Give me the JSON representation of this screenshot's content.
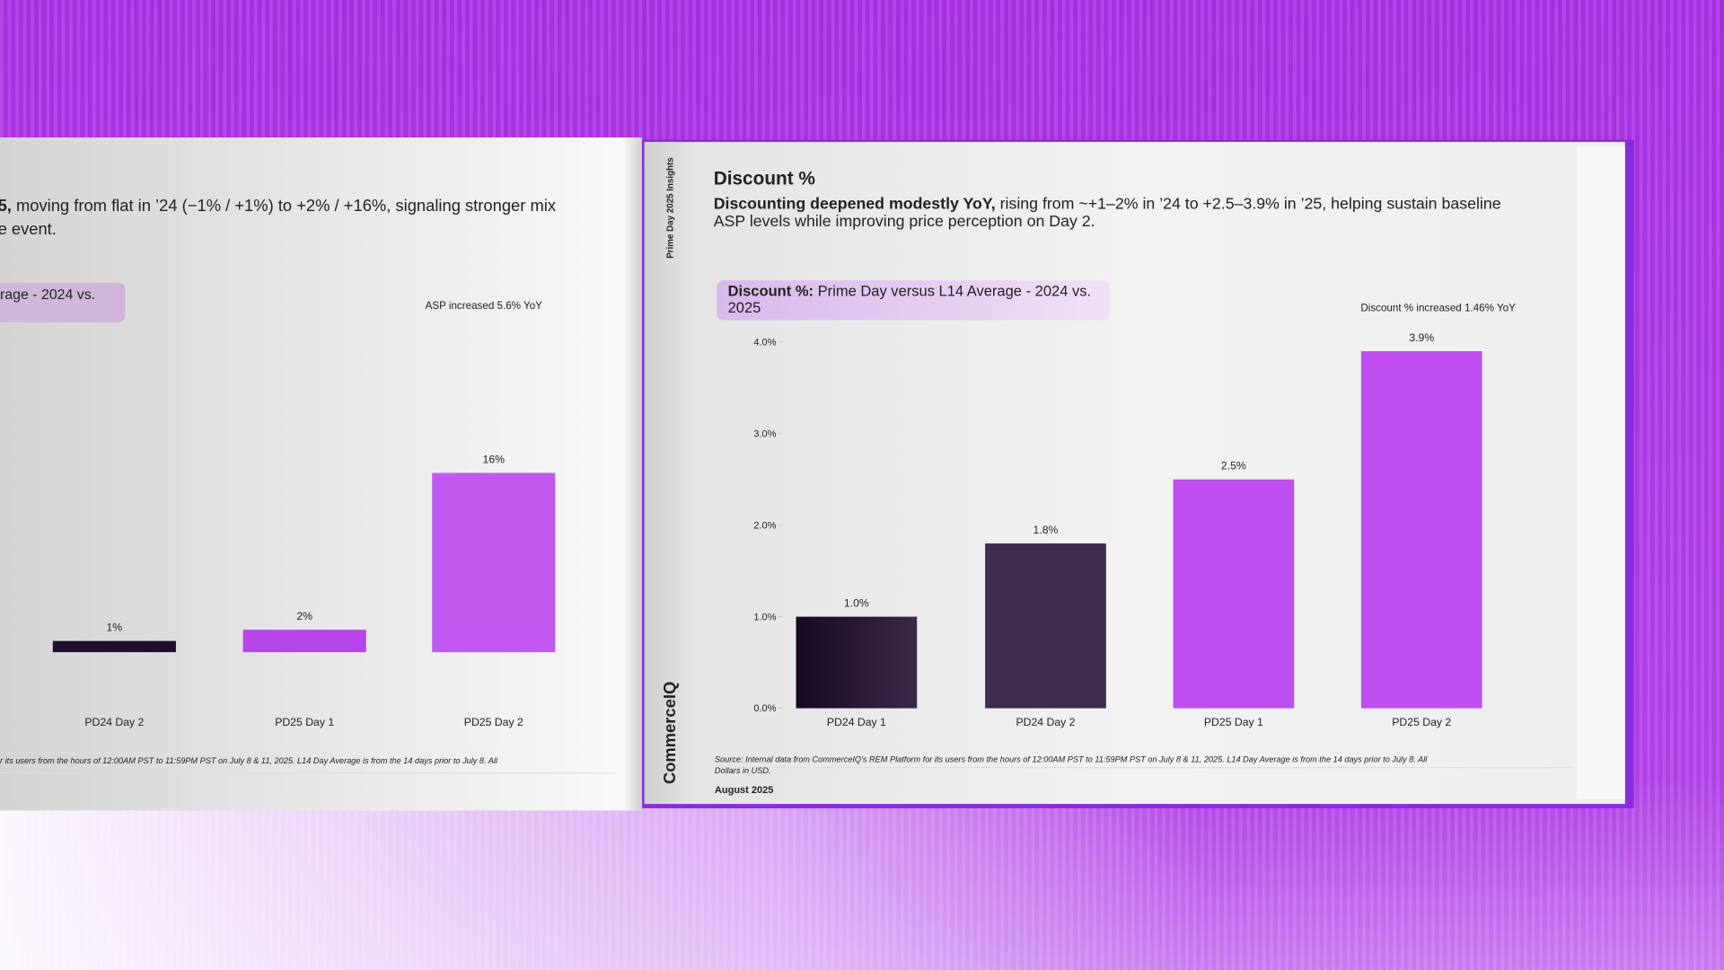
{
  "page": {
    "running_header": "Prime Day 2025 Insights",
    "brand": "CommerceIQ",
    "date": "August 2025"
  },
  "chart_data": [
    {
      "type": "bar",
      "subtitle": {
        "bold": "5,",
        "lines": [
          " moving from flat in ’24 (−1% / +1%) to +2% / +16%, signaling stronger mix",
          "e event."
        ]
      },
      "chart_title": {
        "lines": [
          "rage - 2024 vs."
        ]
      },
      "annotation": "ASP increased 5.6% YoY",
      "categories": [
        "PD24 Day 2",
        "PD25 Day 1",
        "PD25 Day 2"
      ],
      "values": [
        1,
        2,
        16
      ],
      "value_labels": [
        "1%",
        "2%",
        "16%"
      ],
      "colors": [
        "#1e0f2a",
        "#b845e8",
        "#c158f0"
      ],
      "ylim": [
        0,
        16
      ],
      "source": [
        "r its users from the hours of 12:00AM PST to 11:59PM PST on July 8 & 11, 2025. L14 Day Average is from the 14 days prior to July 8. All"
      ]
    },
    {
      "type": "bar",
      "title": "Discount %",
      "subtitle": {
        "bold": "Discounting deepened modestly YoY,",
        "lines": [
          " rising from ~+1–2% in ’24 to +2.5–3.9% in ’25, helping sustain baseline",
          "ASP levels while improving price perception on Day 2."
        ]
      },
      "chart_title": {
        "bold": "Discount %:",
        "lines": [
          " Prime Day versus L14 Average - 2024 vs.",
          "2025"
        ]
      },
      "annotation": "Discount % increased 1.46% YoY",
      "categories": [
        "PD24 Day 1",
        "PD24 Day 2",
        "PD25 Day 1",
        "PD25 Day 2"
      ],
      "values": [
        1.0,
        1.8,
        2.5,
        3.9
      ],
      "value_labels": [
        "1.0%",
        "1.8%",
        "2.5%",
        "3.9%"
      ],
      "colors": [
        "#1c0c28",
        "#3f2a50",
        "#c04ff0",
        "#c04ff0"
      ],
      "ylim": [
        0,
        4
      ],
      "yticks": [
        {
          "value": 0,
          "label": "0.0%"
        },
        {
          "value": 1,
          "label": "1.0%"
        },
        {
          "value": 2,
          "label": "2.0%"
        },
        {
          "value": 3,
          "label": "3.0%"
        },
        {
          "value": 4,
          "label": "4.0%"
        }
      ],
      "source": [
        "Source: Internal data from CommerceIQ’s REM Platform for its users from the hours of 12:00AM PST to 11:59PM PST on July 8 & 11, 2025. L14 Day Average is from the 14 days prior to July 8. All",
        "Dollars in USD."
      ]
    }
  ]
}
